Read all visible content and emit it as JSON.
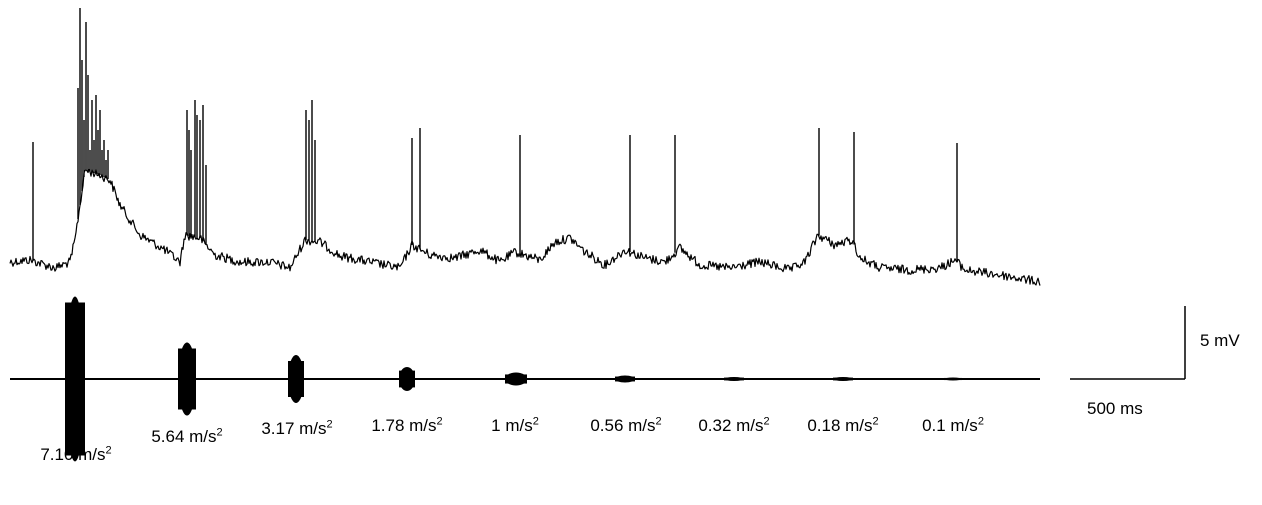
{
  "stimuli": [
    {
      "value": "7.10",
      "unit": "m/s",
      "exp": "2"
    },
    {
      "value": "5.64",
      "unit": "m/s",
      "exp": "2"
    },
    {
      "value": "3.17",
      "unit": "m/s",
      "exp": "2"
    },
    {
      "value": "1.78",
      "unit": "m/s",
      "exp": "2"
    },
    {
      "value": "1",
      "unit": "m/s",
      "exp": "2"
    },
    {
      "value": "0.56",
      "unit": "m/s",
      "exp": "2"
    },
    {
      "value": "0.32",
      "unit": "m/s",
      "exp": "2"
    },
    {
      "value": "0.18",
      "unit": "m/s",
      "exp": "2"
    },
    {
      "value": "0.1",
      "unit": "m/s",
      "exp": "2"
    }
  ],
  "scale_bar": {
    "voltage_label": "5 mV",
    "time_label": "500 ms"
  },
  "colors": {
    "trace": "#000000",
    "background": "#ffffff"
  }
}
